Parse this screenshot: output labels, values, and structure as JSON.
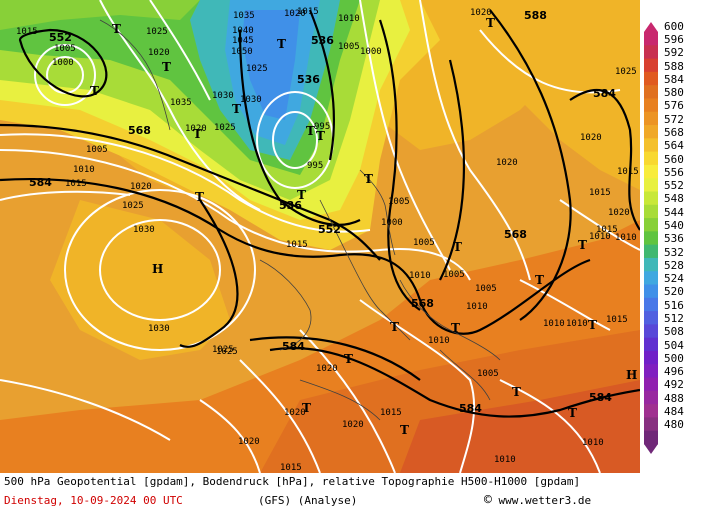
{
  "legend": {
    "values": [
      "600",
      "596",
      "592",
      "588",
      "584",
      "580",
      "576",
      "572",
      "568",
      "564",
      "560",
      "556",
      "552",
      "548",
      "544",
      "540",
      "536",
      "532",
      "528",
      "524",
      "520",
      "516",
      "512",
      "508",
      "504",
      "500",
      "496",
      "492",
      "488",
      "484",
      "480"
    ],
    "colors": [
      "#c8286e",
      "#c83050",
      "#d84030",
      "#e05a20",
      "#e07020",
      "#e88020",
      "#ec9424",
      "#f0a828",
      "#f4c02c",
      "#f8d830",
      "#f8ec3c",
      "#e8f040",
      "#c8e838",
      "#a8dc38",
      "#88d038",
      "#60c440",
      "#40b870",
      "#40b8b8",
      "#40a8e0",
      "#4090e8",
      "#4878e8",
      "#5060e0",
      "#5848d8",
      "#6030d0",
      "#7020c8",
      "#8020c0",
      "#9020b0",
      "#9828a0",
      "#a03090",
      "#883080",
      "#702878"
    ]
  },
  "caption": {
    "line1": "500 hPa Geopotential [gpdam], Bodendruck [hPa], relative Topographie H500-H1000 [gpdam]",
    "date": "Dienstag, 10-09-2024  00 UTC",
    "model": "(GFS)  (Analyse)",
    "copyright": "©",
    "source": "www.wetter3.de"
  },
  "map": {
    "geopotential_labels": [
      "552",
      "568",
      "584",
      "536",
      "536",
      "536",
      "552",
      "588",
      "584",
      "568",
      "584",
      "584",
      "568",
      "584"
    ],
    "pressure_labels": [
      "1005",
      "1000",
      "1025",
      "1020",
      "1005",
      "1010",
      "1015",
      "1020",
      "1025",
      "1030",
      "1030",
      "1025",
      "1035",
      "1030",
      "1020",
      "1015",
      "1040",
      "1045",
      "1050",
      "1035",
      "1030",
      "1025",
      "1020",
      "1020",
      "1015",
      "1010",
      "1005",
      "1000",
      "995",
      "995",
      "1000",
      "1005",
      "1015",
      "1010",
      "1005",
      "1005",
      "1005",
      "1010",
      "1020",
      "1025",
      "1010",
      "1015",
      "1005",
      "1010",
      "1010",
      "1020",
      "1020",
      "1015",
      "1020",
      "1010",
      "1010",
      "1015",
      "1010",
      "1015",
      "1025",
      "1020",
      "1025",
      "1015",
      "1020",
      "1020",
      "1010",
      "1015"
    ],
    "symbols": [
      "T",
      "T",
      "T",
      "T",
      "T",
      "T",
      "T",
      "T",
      "T",
      "T",
      "T",
      "T",
      "T",
      "T",
      "T",
      "T",
      "T",
      "T",
      "T",
      "T",
      "T",
      "T",
      "H",
      "H",
      "T"
    ]
  }
}
